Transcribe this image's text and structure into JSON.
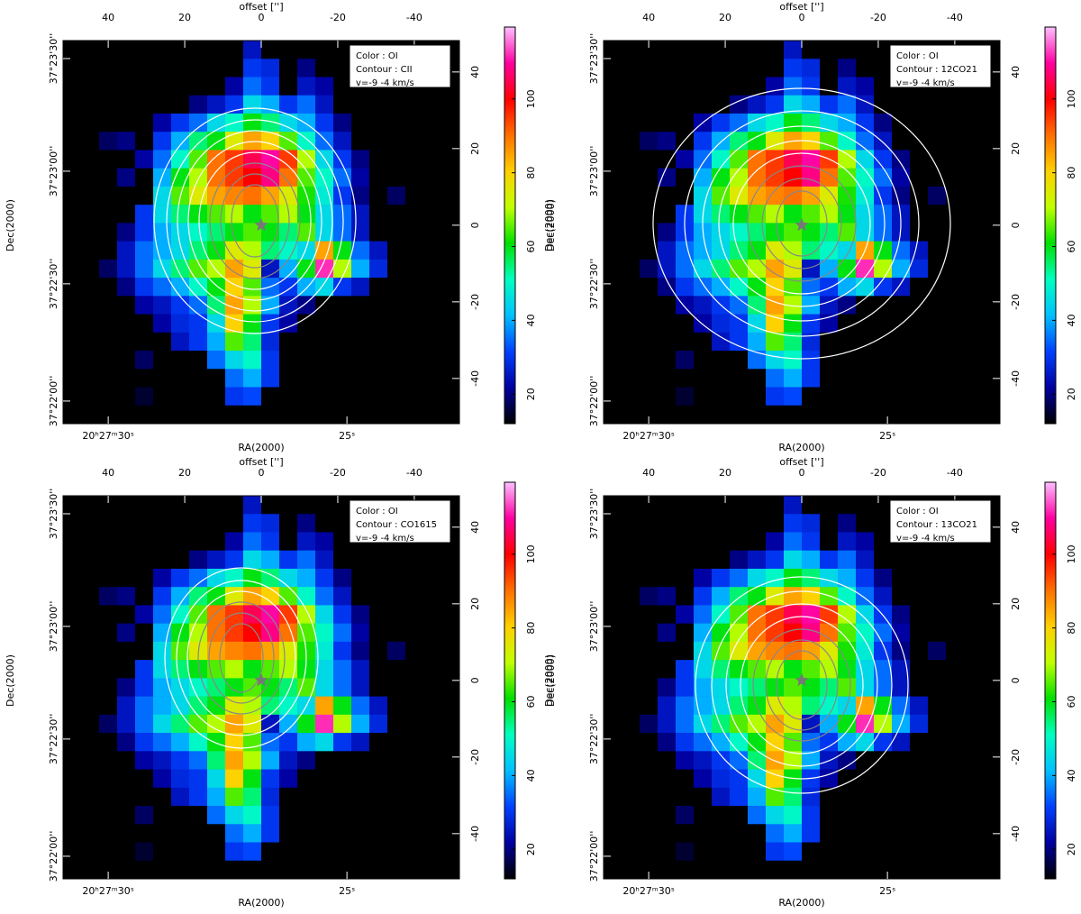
{
  "chart_data": {
    "type": "heatmap",
    "x_label": "offset ['']",
    "ra_label": "RA(2000)",
    "dec_label": "Dec(2000)",
    "xlim": [
      51.8,
      -51.8
    ],
    "ylim": [
      -51.8,
      48.2
    ],
    "xticks": [
      40,
      20,
      0,
      -20,
      -40
    ],
    "yticks": [
      -40,
      -20,
      0,
      20,
      40
    ],
    "ra_ticks": [
      {
        "value": 40.0,
        "label": "20ʰ27ᵐ30ˢ"
      },
      {
        "value": -22.4,
        "label": "25ˢ"
      }
    ],
    "dec_ticks": [
      {
        "value": 43.5,
        "label": "37°23'30''"
      },
      {
        "value": 14.1,
        "label": "37°23'00''"
      },
      {
        "value": -15.3,
        "label": "37°22'30''"
      },
      {
        "value": -45.9,
        "label": "37°22'00''"
      }
    ],
    "zlim": [
      12,
      119.5
    ],
    "colorbar_ticks": [
      20,
      40,
      60,
      80,
      100
    ],
    "colormap": [
      "#000000",
      "#0000a0",
      "#0040ff",
      "#00c0ff",
      "#00ffc0",
      "#00e000",
      "#c0ff00",
      "#ffd000",
      "#ff7000",
      "#ff0000",
      "#ff00a0",
      "#ffc0ff"
    ],
    "values": [
      [
        5,
        5,
        5,
        5,
        5,
        5,
        5,
        5,
        5,
        5,
        25,
        5,
        5,
        5,
        5,
        5,
        5,
        5,
        5,
        5,
        5,
        5
      ],
      [
        5,
        5,
        5,
        5,
        5,
        5,
        5,
        5,
        5,
        5,
        30,
        28,
        5,
        20,
        5,
        5,
        5,
        5,
        5,
        5,
        5,
        5
      ],
      [
        5,
        5,
        5,
        5,
        5,
        5,
        5,
        5,
        5,
        22,
        35,
        30,
        5,
        25,
        22,
        5,
        5,
        5,
        5,
        5,
        5,
        5
      ],
      [
        5,
        5,
        5,
        5,
        5,
        5,
        5,
        20,
        25,
        30,
        45,
        40,
        30,
        35,
        25,
        5,
        5,
        5,
        5,
        5,
        5,
        5
      ],
      [
        5,
        5,
        5,
        5,
        5,
        22,
        30,
        35,
        45,
        50,
        60,
        55,
        45,
        40,
        30,
        20,
        5,
        5,
        5,
        5,
        5,
        5
      ],
      [
        5,
        5,
        18,
        20,
        5,
        30,
        40,
        55,
        60,
        75,
        85,
        80,
        65,
        50,
        35,
        25,
        5,
        5,
        5,
        5,
        5,
        5
      ],
      [
        5,
        5,
        5,
        5,
        22,
        35,
        50,
        65,
        90,
        95,
        105,
        110,
        95,
        70,
        45,
        30,
        20,
        5,
        5,
        5,
        5,
        5
      ],
      [
        5,
        5,
        5,
        20,
        5,
        40,
        60,
        70,
        90,
        95,
        100,
        108,
        90,
        65,
        50,
        35,
        22,
        5,
        5,
        5,
        5,
        5
      ],
      [
        5,
        5,
        5,
        5,
        5,
        45,
        65,
        75,
        85,
        88,
        90,
        85,
        75,
        62,
        48,
        30,
        20,
        5,
        18,
        5,
        5,
        5
      ],
      [
        5,
        5,
        5,
        5,
        30,
        45,
        55,
        60,
        65,
        70,
        60,
        65,
        70,
        60,
        45,
        35,
        25,
        5,
        5,
        5,
        5,
        5
      ],
      [
        5,
        5,
        5,
        20,
        30,
        40,
        45,
        50,
        55,
        60,
        65,
        60,
        55,
        65,
        45,
        35,
        25,
        5,
        5,
        5,
        5,
        5
      ],
      [
        5,
        5,
        5,
        25,
        35,
        40,
        45,
        55,
        60,
        75,
        70,
        55,
        50,
        45,
        85,
        60,
        35,
        25,
        5,
        5,
        5,
        5
      ],
      [
        5,
        5,
        18,
        25,
        35,
        45,
        55,
        65,
        70,
        85,
        75,
        25,
        40,
        60,
        112,
        70,
        40,
        28,
        5,
        5,
        5,
        5
      ],
      [
        5,
        5,
        5,
        20,
        30,
        35,
        40,
        50,
        60,
        80,
        65,
        35,
        30,
        40,
        45,
        30,
        25,
        5,
        5,
        5,
        5,
        5
      ],
      [
        5,
        5,
        5,
        5,
        22,
        25,
        30,
        35,
        55,
        85,
        70,
        40,
        25,
        20,
        5,
        5,
        5,
        5,
        5,
        5,
        5,
        5
      ],
      [
        5,
        5,
        5,
        5,
        5,
        22,
        28,
        30,
        45,
        80,
        60,
        30,
        22,
        5,
        5,
        5,
        5,
        5,
        5,
        5,
        5,
        5
      ],
      [
        5,
        5,
        5,
        5,
        5,
        5,
        25,
        30,
        40,
        65,
        55,
        28,
        5,
        5,
        5,
        5,
        5,
        5,
        5,
        5,
        5,
        5
      ],
      [
        5,
        5,
        5,
        5,
        18,
        5,
        5,
        5,
        35,
        45,
        50,
        30,
        5,
        5,
        5,
        5,
        5,
        5,
        5,
        5,
        5,
        5
      ],
      [
        5,
        5,
        5,
        5,
        5,
        5,
        5,
        5,
        5,
        35,
        40,
        30,
        5,
        5,
        5,
        5,
        5,
        5,
        5,
        5,
        5,
        5
      ],
      [
        5,
        5,
        5,
        5,
        15,
        5,
        5,
        5,
        5,
        30,
        32,
        5,
        5,
        5,
        5,
        5,
        5,
        5,
        5,
        5,
        5,
        5
      ],
      [
        5,
        5,
        5,
        5,
        5,
        5,
        5,
        5,
        5,
        5,
        5,
        5,
        5,
        5,
        5,
        5,
        5,
        5,
        5,
        5,
        5,
        5
      ]
    ],
    "panels": [
      {
        "legend": [
          "Color : OI",
          "Contour : CII",
          "v=-9 -4 km/s"
        ]
      },
      {
        "legend": [
          "Color : OI",
          "Contour : 12CO21",
          "v=-9 -4 km/s"
        ]
      },
      {
        "legend": [
          "Color : OI",
          "Contour : CO1615",
          "v=-9 -4 km/s"
        ]
      },
      {
        "legend": [
          "Color : OI",
          "Contour : 13CO21",
          "v=-9 -4 km/s"
        ]
      }
    ]
  }
}
